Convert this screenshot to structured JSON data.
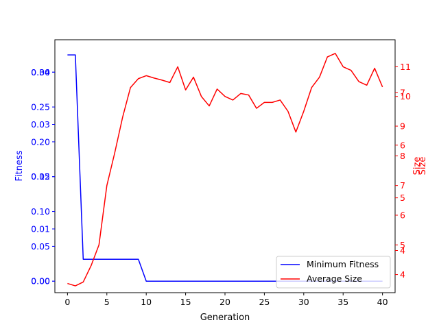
{
  "chart_data": {
    "type": "line",
    "xlabel": "Generation",
    "ylabel_left": "Fitness",
    "ylabel_right": "Size",
    "xlim": [
      -1.6,
      41.6
    ],
    "xticks": [
      0,
      5,
      10,
      15,
      20,
      25,
      30,
      35,
      40
    ],
    "grid": false,
    "legend_position": "lower-right",
    "colors": {
      "fitness": "#0000ff",
      "size": "#ff0000",
      "axes": "#000000"
    },
    "left_axes": [
      {
        "ylim": [
          -0.0022,
          0.0462
        ],
        "ticks": [
          {
            "value": 0.0,
            "label": "0.00"
          },
          {
            "value": 0.01,
            "label": "0.01"
          },
          {
            "value": 0.02,
            "label": "0.02"
          },
          {
            "value": 0.03,
            "label": "0.03"
          },
          {
            "value": 0.04,
            "label": "0.04"
          }
        ]
      },
      {
        "ylim": [
          -0.0165,
          0.3465
        ],
        "ticks": [
          {
            "value": 0.0,
            "label": "0.00"
          },
          {
            "value": 0.05,
            "label": "0.05"
          },
          {
            "value": 0.1,
            "label": "0.10"
          },
          {
            "value": 0.15,
            "label": "0.15"
          },
          {
            "value": 0.2,
            "label": "0.20"
          },
          {
            "value": 0.25,
            "label": "0.25"
          },
          {
            "value": 0.3,
            "label": "0.30"
          }
        ]
      }
    ],
    "right_axes": [
      {
        "ylim": [
          3.39,
          11.91
        ],
        "ticks": [
          {
            "value": 4,
            "label": "4"
          },
          {
            "value": 5,
            "label": "5"
          },
          {
            "value": 6,
            "label": "6"
          },
          {
            "value": 7,
            "label": "7"
          },
          {
            "value": 8,
            "label": "8"
          },
          {
            "value": 9,
            "label": "9"
          },
          {
            "value": 10,
            "label": "10"
          },
          {
            "value": 11,
            "label": "11"
          }
        ]
      },
      {
        "ylim": [
          3.2,
          8.0
        ],
        "ticks": [
          {
            "value": 4,
            "label": "4"
          },
          {
            "value": 5,
            "label": "5"
          },
          {
            "value": 6,
            "label": "6"
          },
          {
            "value": 7,
            "label": "7"
          }
        ]
      }
    ],
    "series": [
      {
        "name": "Minimum Fitness",
        "axis": "left",
        "x": [
          0,
          1,
          2,
          3,
          4,
          5,
          6,
          7,
          8,
          9,
          10,
          11,
          12,
          13,
          14,
          15,
          16,
          17,
          18,
          19,
          20,
          21,
          22,
          23,
          24,
          25,
          26,
          27,
          28,
          29,
          30,
          31,
          32,
          33,
          34,
          35,
          36,
          37,
          38,
          39,
          40
        ],
        "y": [
          0.0433,
          0.0433,
          0.0042,
          0.0042,
          0.0042,
          0.0042,
          0.0042,
          0.0042,
          0.0042,
          0.0042,
          0.0,
          0.0,
          0.0,
          0.0,
          0.0,
          0.0,
          0.0,
          0.0,
          0.0,
          0.0,
          0.0,
          0.0,
          0.0,
          0.0,
          0.0,
          0.0,
          0.0,
          0.0,
          0.0,
          0.0,
          0.0,
          0.0,
          0.0,
          0.0,
          0.0,
          0.0,
          0.0,
          0.0,
          0.0,
          0.0,
          0.0
        ]
      },
      {
        "name": "Average Size",
        "axis": "right",
        "x": [
          0,
          1,
          2,
          3,
          4,
          5,
          6,
          7,
          8,
          9,
          10,
          11,
          12,
          13,
          14,
          15,
          16,
          17,
          18,
          19,
          20,
          21,
          22,
          23,
          24,
          25,
          26,
          27,
          28,
          29,
          30,
          31,
          32,
          33,
          34,
          35,
          36,
          37,
          38,
          39,
          40
        ],
        "y": [
          3.7,
          3.62,
          3.75,
          4.3,
          5.0,
          7.0,
          8.1,
          9.3,
          10.3,
          10.6,
          10.7,
          10.62,
          10.55,
          10.47,
          11.0,
          10.22,
          10.65,
          10.0,
          9.68,
          10.25,
          10.0,
          9.88,
          10.1,
          10.05,
          9.6,
          9.8,
          9.8,
          9.88,
          9.5,
          8.8,
          9.5,
          10.3,
          10.65,
          11.33,
          11.45,
          11.0,
          10.88,
          10.5,
          10.38,
          10.95,
          10.32
        ]
      }
    ]
  }
}
